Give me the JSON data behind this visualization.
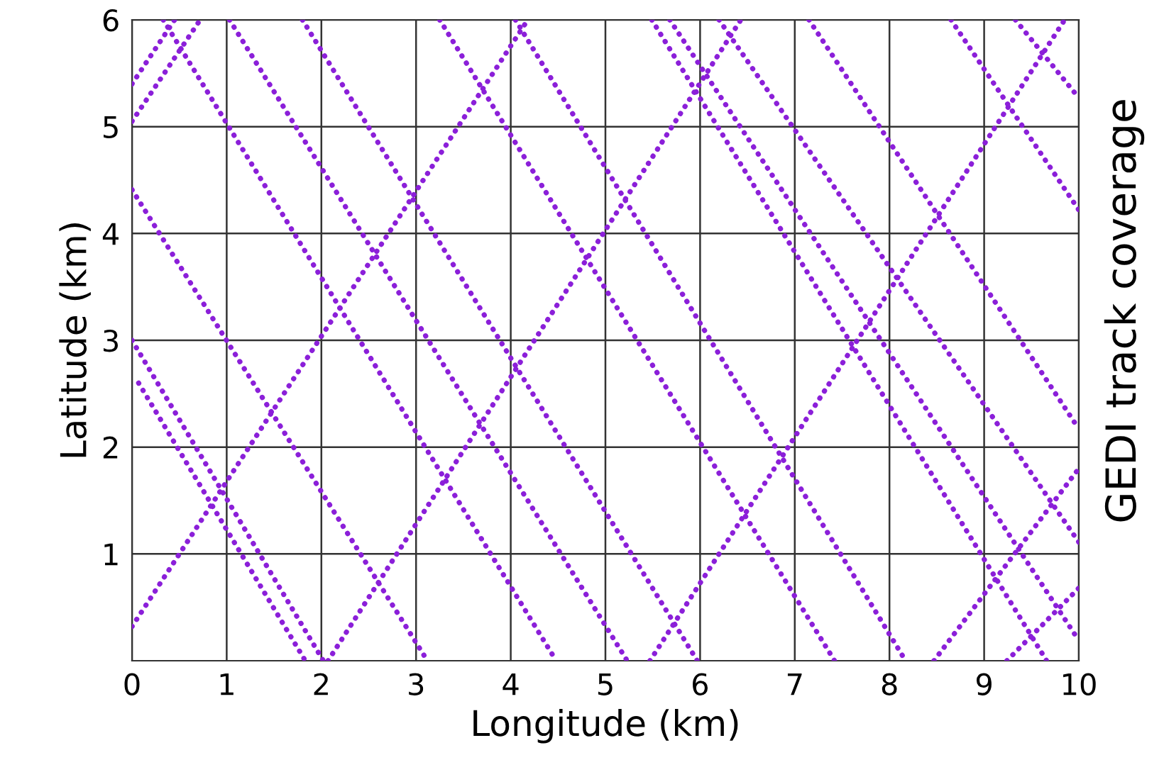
{
  "chart_data": {
    "type": "line",
    "xlabel": "Longitude (km)",
    "ylabel": "Latitude (km)",
    "annotations": [
      "GEDI track coverage"
    ],
    "xlim": [
      0,
      10
    ],
    "ylim": [
      0,
      6
    ],
    "xticks": [
      0,
      1,
      2,
      3,
      4,
      5,
      6,
      7,
      8,
      9,
      10
    ],
    "yticks": [
      1,
      2,
      3,
      4,
      5,
      6
    ],
    "grid": true,
    "line_style": "dotted",
    "marker": "none",
    "legend": false,
    "series": [
      {
        "color": "#8b1fd9",
        "x": [
          0.33,
          4.48
        ],
        "values": [
          6,
          0
        ]
      },
      {
        "color": "#8b1fd9",
        "x": [
          1.03,
          5.23
        ],
        "values": [
          6,
          0
        ]
      },
      {
        "color": "#8b1fd9",
        "x": [
          1.8,
          5.97
        ],
        "values": [
          6,
          0
        ]
      },
      {
        "color": "#8b1fd9",
        "x": [
          3.25,
          7.42
        ],
        "values": [
          6,
          0
        ]
      },
      {
        "color": "#8b1fd9",
        "x": [
          4.05,
          8.17
        ],
        "values": [
          6,
          0
        ]
      },
      {
        "color": "#8b1fd9",
        "x": [
          5.49,
          9.66
        ],
        "values": [
          6,
          0
        ]
      },
      {
        "color": "#8b1fd9",
        "x": [
          5.68,
          10
        ],
        "values": [
          6,
          0.19
        ]
      },
      {
        "color": "#8b1fd9",
        "x": [
          6.2,
          10
        ],
        "values": [
          6,
          1.11
        ]
      },
      {
        "color": "#8b1fd9",
        "x": [
          7.15,
          10
        ],
        "values": [
          6,
          2.17
        ]
      },
      {
        "color": "#8b1fd9",
        "x": [
          8.65,
          10
        ],
        "values": [
          6,
          4.22
        ]
      },
      {
        "color": "#8b1fd9",
        "x": [
          9.33,
          10
        ],
        "values": [
          6,
          5.27
        ]
      },
      {
        "color": "#8b1fd9",
        "x": [
          0,
          3.12
        ],
        "values": [
          4.41,
          0
        ]
      },
      {
        "color": "#8b1fd9",
        "x": [
          0,
          2.02
        ],
        "values": [
          3,
          0
        ]
      },
      {
        "color": "#8b1fd9",
        "x": [
          0.07,
          1.83
        ],
        "values": [
          2.6,
          0
        ]
      },
      {
        "color": "#8b1fd9",
        "x": [
          0,
          4.18
        ],
        "values": [
          0.32,
          6
        ]
      },
      {
        "color": "#8b1fd9",
        "x": [
          0,
          0.72
        ],
        "values": [
          5.05,
          6
        ]
      },
      {
        "color": "#8b1fd9",
        "x": [
          0,
          0.45
        ],
        "values": [
          5.4,
          6
        ]
      },
      {
        "color": "#8b1fd9",
        "x": [
          2.07,
          6.43
        ],
        "values": [
          0,
          6
        ]
      },
      {
        "color": "#8b1fd9",
        "x": [
          5.47,
          9.85
        ],
        "values": [
          0,
          6
        ]
      },
      {
        "color": "#8b1fd9",
        "x": [
          8.47,
          10
        ],
        "values": [
          0,
          1.8
        ]
      },
      {
        "color": "#8b1fd9",
        "x": [
          9.24,
          10
        ],
        "values": [
          0,
          0.68
        ]
      }
    ]
  }
}
